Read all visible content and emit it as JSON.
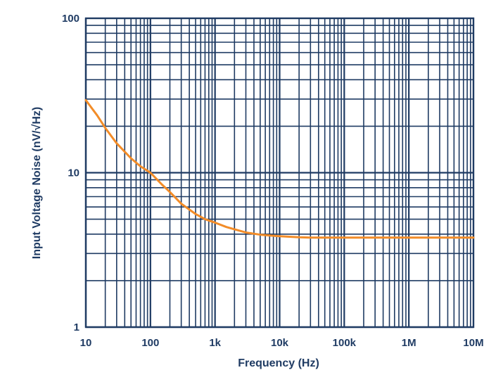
{
  "colors": {
    "grid": "#1f3b63",
    "curve": "#f28c28",
    "text": "#1f3b63",
    "background": "#ffffff"
  },
  "chart_data": {
    "type": "line",
    "title": "",
    "xlabel": "Frequency (Hz)",
    "ylabel": "Input Voltage Noise (nV/√Hz)",
    "xscale": "log",
    "yscale": "log",
    "xlim": [
      10,
      10000000
    ],
    "ylim": [
      1,
      100
    ],
    "grid": true,
    "legend": "none",
    "x_ticks": [
      {
        "value": 10,
        "label": "10"
      },
      {
        "value": 100,
        "label": "100"
      },
      {
        "value": 1000,
        "label": "1k"
      },
      {
        "value": 10000,
        "label": "10k"
      },
      {
        "value": 100000,
        "label": "100k"
      },
      {
        "value": 1000000,
        "label": "1M"
      },
      {
        "value": 10000000,
        "label": "10M"
      }
    ],
    "y_ticks": [
      {
        "value": 1,
        "label": "1"
      },
      {
        "value": 10,
        "label": "10"
      },
      {
        "value": 100,
        "label": "100"
      }
    ],
    "series": [
      {
        "x": [
          10,
          15,
          20,
          30,
          50,
          70,
          100,
          150,
          200,
          300,
          500,
          700,
          1000,
          1500,
          2000,
          3000,
          5000,
          7000,
          10000,
          20000,
          30000,
          50000,
          100000,
          200000,
          500000,
          1000000,
          2000000,
          5000000,
          10000000
        ],
        "values": [
          29.5,
          23.5,
          19.5,
          15.5,
          12.4,
          11.0,
          10.0,
          8.4,
          7.5,
          6.3,
          5.4,
          5.0,
          4.75,
          4.45,
          4.3,
          4.1,
          3.97,
          3.92,
          3.88,
          3.82,
          3.8,
          3.8,
          3.8,
          3.8,
          3.8,
          3.8,
          3.8,
          3.8,
          3.8
        ]
      }
    ]
  }
}
